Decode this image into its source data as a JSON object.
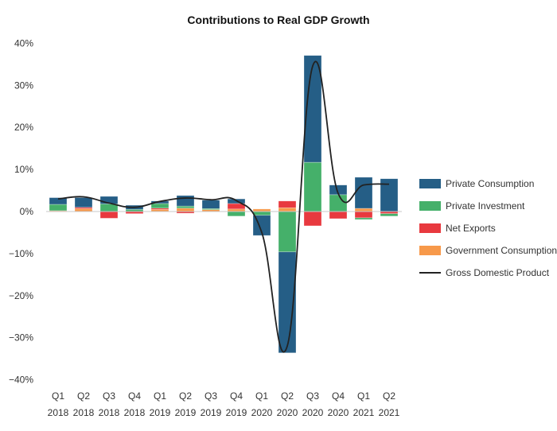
{
  "chart_data": {
    "type": "bar",
    "stacked": true,
    "title": "Contributions to Real GDP Growth",
    "xlabel": "",
    "ylabel": "",
    "ylim": [
      -40,
      40
    ],
    "yticks": [
      40,
      30,
      20,
      10,
      0,
      -10,
      -20,
      -30,
      -40
    ],
    "ytick_labels": [
      "40%",
      "30%",
      "20%",
      "10%",
      "0%",
      "−10%",
      "−20%",
      "−30%",
      "−40%"
    ],
    "categories": [
      {
        "q": "Q1",
        "y": "2018"
      },
      {
        "q": "Q2",
        "y": "2018"
      },
      {
        "q": "Q3",
        "y": "2018"
      },
      {
        "q": "Q4",
        "y": "2018"
      },
      {
        "q": "Q1",
        "y": "2019"
      },
      {
        "q": "Q2",
        "y": "2019"
      },
      {
        "q": "Q3",
        "y": "2019"
      },
      {
        "q": "Q4",
        "y": "2019"
      },
      {
        "q": "Q1",
        "y": "2020"
      },
      {
        "q": "Q2",
        "y": "2020"
      },
      {
        "q": "Q3",
        "y": "2020"
      },
      {
        "q": "Q4",
        "y": "2020"
      },
      {
        "q": "Q1",
        "y": "2021"
      },
      {
        "q": "Q2",
        "y": "2021"
      }
    ],
    "series": [
      {
        "name": "Government Consumption",
        "color": "#f7994a",
        "values": [
          0.2,
          0.7,
          0.0,
          0.0,
          0.5,
          0.8,
          0.45,
          0.6,
          0.6,
          0.9,
          0.0,
          0.0,
          0.75,
          0.0
        ]
      },
      {
        "name": "Net Exports",
        "color": "#e8393f",
        "values": [
          -0.1,
          0.3,
          -1.6,
          -0.5,
          0.3,
          -0.4,
          0.0,
          1.3,
          0.0,
          1.6,
          -3.4,
          -1.7,
          -1.5,
          -0.5
        ]
      },
      {
        "name": "Private Investment",
        "color": "#45b06a",
        "values": [
          1.5,
          0.0,
          1.8,
          0.5,
          1.1,
          0.5,
          0.25,
          -1.1,
          -0.9,
          -9.6,
          11.7,
          4.0,
          -0.4,
          -0.6
        ]
      },
      {
        "name": "Private Consumption",
        "color": "#255e86",
        "values": [
          1.6,
          2.3,
          1.8,
          1.0,
          0.6,
          2.5,
          2.0,
          1.1,
          -4.8,
          -24.0,
          25.4,
          2.3,
          7.4,
          7.8
        ]
      }
    ],
    "line": {
      "name": "Gross Domestic Product",
      "color": "#222222",
      "values": [
        3.0,
        3.5,
        2.0,
        1.0,
        2.4,
        3.2,
        2.8,
        2.6,
        -5.0,
        -32.0,
        34.6,
        4.3,
        6.3,
        6.5
      ]
    },
    "legend_order": [
      "Private Consumption",
      "Private Investment",
      "Net Exports",
      "Government Consumption",
      "Gross Domestic Product"
    ],
    "legend_position": "right",
    "grid": false
  }
}
